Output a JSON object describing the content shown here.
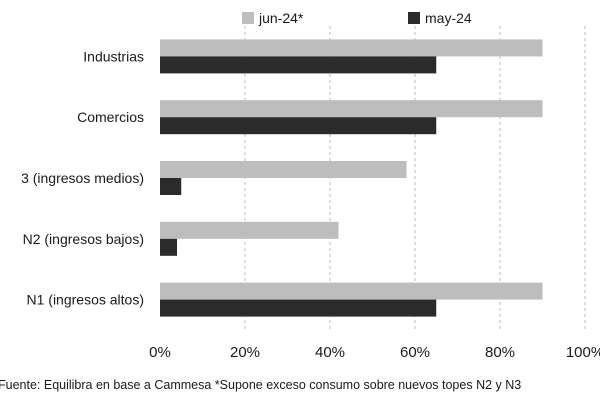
{
  "chart_data": {
    "type": "bar",
    "orientation": "horizontal",
    "categories": [
      "Industrias",
      "Comercios",
      "3 (ingresos medios)",
      "N2 (ingresos bajos)",
      "N1 (ingresos altos)"
    ],
    "series": [
      {
        "name": "jun-24*",
        "values": [
          90,
          90,
          58,
          42,
          90
        ],
        "color": "#bdbdbd"
      },
      {
        "name": "may-24",
        "values": [
          65,
          65,
          5,
          4,
          65
        ],
        "color": "#2b2b2b"
      }
    ],
    "xlim": [
      0,
      100
    ],
    "xticks": [
      0,
      20,
      40,
      60,
      80,
      100
    ],
    "xtick_labels": [
      "0%",
      "20%",
      "40%",
      "60%",
      "80%",
      "100%"
    ],
    "grid": "vertical dashed",
    "legend_position": "top",
    "source_note": "Fuente: Equilibra en base a Cammesa *Supone exceso consumo sobre nuevos topes N2 y N3"
  }
}
